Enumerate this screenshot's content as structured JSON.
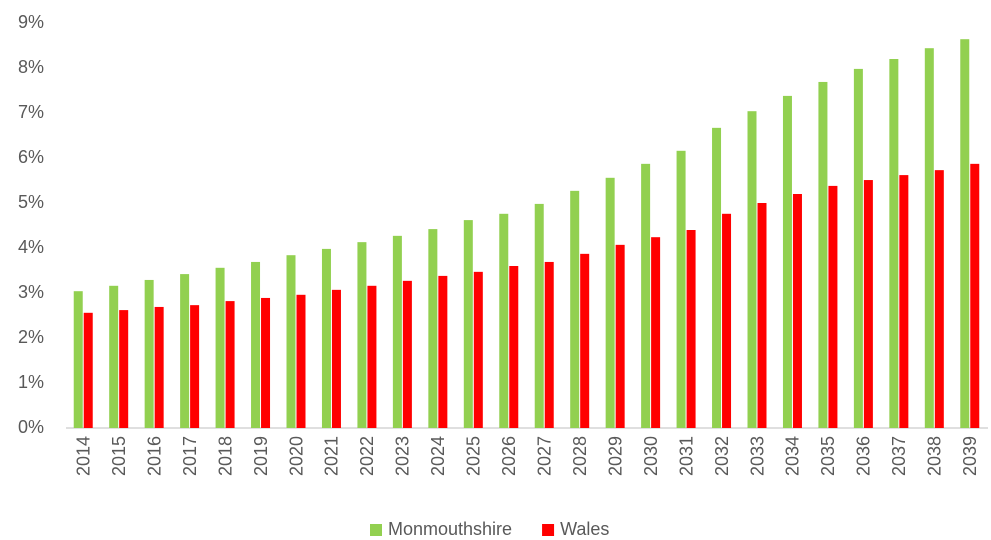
{
  "chart_data": {
    "type": "bar",
    "categories": [
      "2014",
      "2015",
      "2016",
      "2017",
      "2018",
      "2019",
      "2020",
      "2021",
      "2022",
      "2023",
      "2024",
      "2025",
      "2026",
      "2027",
      "2028",
      "2029",
      "2030",
      "2031",
      "2032",
      "2033",
      "2034",
      "2035",
      "2036",
      "2037",
      "2038",
      "2039"
    ],
    "series": [
      {
        "name": "Monmouthshire",
        "color": "#92d050",
        "values": [
          3.04,
          3.16,
          3.29,
          3.42,
          3.56,
          3.69,
          3.84,
          3.98,
          4.13,
          4.27,
          4.42,
          4.62,
          4.76,
          4.98,
          5.27,
          5.56,
          5.87,
          6.16,
          6.67,
          7.04,
          7.38,
          7.69,
          7.98,
          8.2,
          8.44,
          8.64
        ]
      },
      {
        "name": "Wales",
        "color": "#ff0000",
        "values": [
          2.56,
          2.62,
          2.69,
          2.73,
          2.82,
          2.89,
          2.96,
          3.07,
          3.16,
          3.27,
          3.38,
          3.47,
          3.6,
          3.69,
          3.87,
          4.07,
          4.24,
          4.4,
          4.76,
          5.0,
          5.2,
          5.38,
          5.51,
          5.62,
          5.73,
          5.87
        ]
      }
    ],
    "ylim": [
      0,
      9
    ],
    "yticks": [
      {
        "value": 0,
        "label": "0%"
      },
      {
        "value": 1,
        "label": "1%"
      },
      {
        "value": 2,
        "label": "2%"
      },
      {
        "value": 3,
        "label": "3%"
      },
      {
        "value": 4,
        "label": "4%"
      },
      {
        "value": 5,
        "label": "5%"
      },
      {
        "value": 6,
        "label": "6%"
      },
      {
        "value": 7,
        "label": "7%"
      },
      {
        "value": 8,
        "label": "8%"
      },
      {
        "value": 9,
        "label": "9%"
      }
    ],
    "grid": false,
    "legend": "bottom"
  }
}
